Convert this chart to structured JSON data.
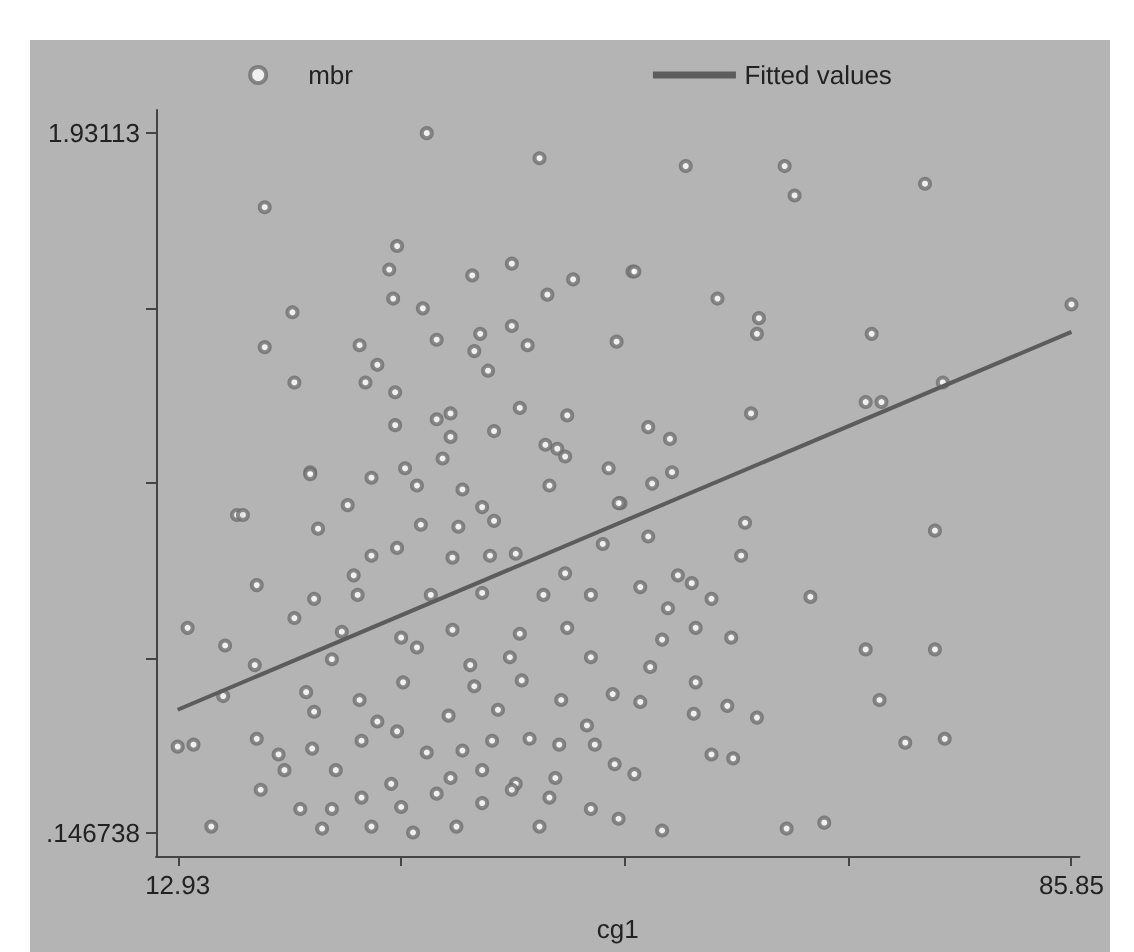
{
  "chart_data": {
    "type": "scatter",
    "xlabel": "cg1",
    "legend": "top",
    "grid": false,
    "line_style": "solid",
    "xlim": [
      11.16,
      86.5
    ],
    "ylim": [
      0.087,
      1.99
    ],
    "xticks": [
      12.93,
      {
        "value": 31.16,
        "label": null
      },
      {
        "value": 49.39,
        "label": null
      },
      {
        "value": 67.62,
        "label": null
      },
      85.85
    ],
    "yticks": [
      {
        "value": 0.146738,
        "label": ".146738"
      },
      {
        "value": 0.592836,
        "label": null
      },
      {
        "value": 1.038934,
        "label": null
      },
      {
        "value": 1.485032,
        "label": null
      },
      1.93113
    ],
    "series": [
      {
        "name": "mbr",
        "marker": "circle",
        "color": "#6e6e6e",
        "x": [
          33.25,
          42.45,
          20.03,
          30.83,
          30.19,
          30.51,
          32.93,
          36.96,
          40.19,
          45.19,
          43.09,
          50.03,
          22.29,
          20.03,
          27.77,
          34.06,
          37.61,
          40.19,
          41.48,
          48.74,
          37.13,
          29.22,
          38.25,
          22.45,
          28.25,
          30.67,
          40.84,
          44.71,
          30.67,
          34.06,
          35.19,
          35.19,
          38.74,
          42.93,
          43.9,
          44.54,
          34.54,
          23.74,
          31.48,
          48.09,
          54.38,
          62.45,
          63.26,
          73.9,
          50.19,
          56.97,
          60.35,
          60.19,
          69.55,
          85.85,
          59.71,
          69.06,
          70.35,
          75.35,
          51.32,
          53.09,
          53.26,
          51.64,
          49.06,
          59.22,
          74.71,
          51.32,
          58.9,
          53.74,
          50.67,
          54.87,
          56.48,
          64.55,
          52.93,
          55.19,
          58.09,
          52.45,
          69.06,
          74.71,
          51.48,
          55.19,
          70.19,
          50.67,
          55.03,
          57.77,
          60.19,
          72.29,
          75.51,
          56.48,
          58.25,
          50.19,
          48.9,
          52.45,
          62.61,
          65.68,
          17.77,
          18.25,
          24.38,
          26.8,
          23.74,
          28.74,
          32.45,
          36.16,
          37.77,
          43.26,
          48.9,
          32.77,
          35.83,
          38.74,
          30.83,
          28.74,
          35.35,
          38.41,
          40.51,
          47.61,
          44.54,
          19.38,
          27.29,
          27.61,
          24.06,
          33.58,
          37.77,
          42.77,
          46.64,
          13.74,
          16.8,
          22.45,
          26.32,
          31.16,
          35.35,
          40.84,
          44.71,
          19.22,
          25.51,
          32.45,
          36.8,
          40.03,
          46.64,
          16.64,
          23.41,
          27.77,
          31.32,
          37.13,
          41.0,
          44.22,
          48.42,
          24.06,
          29.22,
          35.03,
          39.06,
          46.32,
          12.93,
          14.22,
          19.38,
          21.16,
          23.9,
          27.93,
          30.83,
          33.25,
          36.16,
          38.58,
          41.64,
          44.06,
          46.96,
          21.64,
          25.83,
          30.35,
          35.19,
          37.77,
          40.51,
          43.74,
          48.58,
          19.7,
          22.93,
          25.51,
          27.93,
          31.16,
          34.06,
          37.77,
          40.19,
          43.26,
          46.64,
          15.67,
          24.71,
          28.74,
          32.13,
          35.67,
          42.45
        ],
        "values": [
          1.931,
          1.867,
          1.742,
          1.643,
          1.583,
          1.509,
          1.484,
          1.568,
          1.598,
          1.558,
          1.519,
          1.578,
          1.474,
          1.385,
          1.39,
          1.404,
          1.419,
          1.439,
          1.39,
          1.399,
          1.375,
          1.34,
          1.325,
          1.295,
          1.295,
          1.27,
          1.23,
          1.211,
          1.186,
          1.201,
          1.216,
          1.156,
          1.171,
          1.136,
          1.126,
          1.106,
          1.101,
          1.066,
          1.076,
          1.076,
          1.847,
          1.847,
          1.772,
          1.802,
          1.578,
          1.509,
          1.459,
          1.419,
          1.419,
          1.494,
          1.216,
          1.245,
          1.245,
          1.295,
          1.181,
          1.151,
          1.066,
          1.037,
          0.987,
          0.937,
          0.917,
          0.902,
          0.853,
          0.803,
          0.773,
          0.783,
          0.743,
          0.748,
          0.719,
          0.669,
          0.644,
          0.639,
          0.614,
          0.614,
          0.569,
          0.53,
          0.485,
          0.48,
          0.45,
          0.47,
          0.44,
          0.376,
          0.386,
          0.346,
          0.336,
          0.296,
          0.182,
          0.152,
          0.157,
          0.172,
          0.957,
          0.957,
          0.922,
          0.982,
          1.061,
          1.052,
          1.032,
          1.022,
          0.977,
          1.032,
          0.987,
          0.932,
          0.927,
          0.942,
          0.873,
          0.853,
          0.848,
          0.853,
          0.858,
          0.883,
          0.808,
          0.778,
          0.803,
          0.753,
          0.743,
          0.753,
          0.758,
          0.753,
          0.753,
          0.669,
          0.624,
          0.694,
          0.659,
          0.644,
          0.664,
          0.654,
          0.669,
          0.574,
          0.589,
          0.619,
          0.574,
          0.594,
          0.594,
          0.495,
          0.505,
          0.485,
          0.53,
          0.52,
          0.535,
          0.485,
          0.5,
          0.455,
          0.43,
          0.445,
          0.46,
          0.42,
          0.366,
          0.371,
          0.386,
          0.346,
          0.361,
          0.381,
          0.405,
          0.351,
          0.356,
          0.381,
          0.386,
          0.371,
          0.371,
          0.306,
          0.306,
          0.271,
          0.286,
          0.306,
          0.271,
          0.286,
          0.321,
          0.256,
          0.207,
          0.207,
          0.236,
          0.212,
          0.246,
          0.222,
          0.256,
          0.236,
          0.207,
          0.162,
          0.157,
          0.162,
          0.147,
          0.162,
          0.162
        ]
      },
      {
        "name": "Fitted values",
        "type": "line",
        "marker": "none",
        "color": "#5c5c5c",
        "x": [
          12.93,
          85.85
        ],
        "values": [
          0.46,
          1.424
        ]
      }
    ]
  }
}
